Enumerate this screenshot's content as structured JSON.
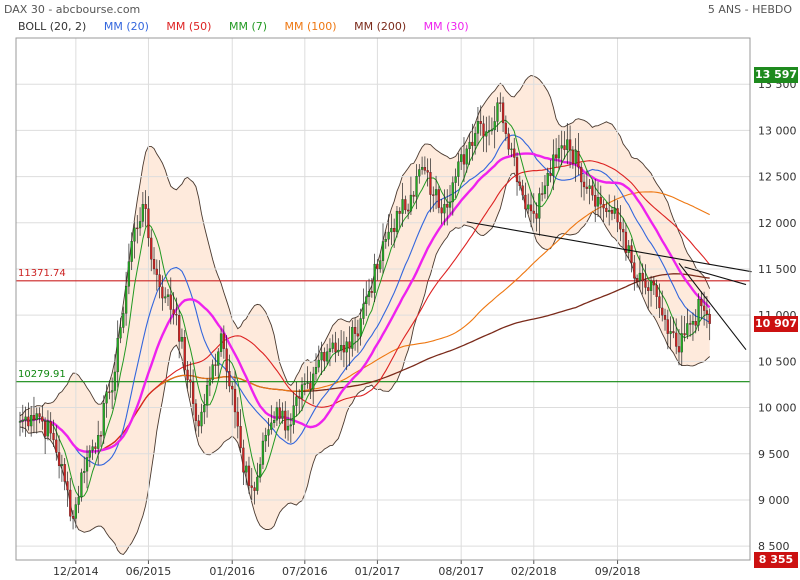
{
  "header": {
    "source": "DAX 30 - abcbourse.com",
    "period": "5 ANS - HEBDO"
  },
  "legend": [
    {
      "label": "BOLL (20, 2)",
      "color": "#333333"
    },
    {
      "label": "MM (20)",
      "color": "#3366dd"
    },
    {
      "label": "MM (50)",
      "color": "#dd2222"
    },
    {
      "label": "MM (7)",
      "color": "#229922"
    },
    {
      "label": "MM (100)",
      "color": "#ee7711"
    },
    {
      "label": "MM (200)",
      "color": "#7a2a1a"
    },
    {
      "label": "MM (30)",
      "color": "#ee22ee"
    }
  ],
  "badges": {
    "high": {
      "label": "13 597",
      "value": 13597,
      "color": "#1e8a1e"
    },
    "last": {
      "label": "10 907",
      "value": 10907,
      "color": "#cc1111"
    },
    "low": {
      "label": "8 355",
      "value": 8355,
      "color": "#cc1111"
    }
  },
  "levels": {
    "resistance": {
      "label": "11371.74",
      "value": 11371.74,
      "color": "#cc2222"
    },
    "support": {
      "label": "10279.91",
      "value": 10279.91,
      "color": "#118811"
    }
  },
  "chart_data": {
    "type": "line",
    "ylim": [
      8350,
      14000
    ],
    "y_ticks": [
      "8 500",
      "9 000",
      "9 500",
      "10 000",
      "10 500",
      "11 000",
      "11 500",
      "12 000",
      "12 500",
      "13 000",
      "13 500"
    ],
    "y_tick_values": [
      8500,
      9000,
      9500,
      10000,
      10500,
      11000,
      11500,
      12000,
      12500,
      13000,
      13500
    ],
    "x_ticks": [
      "12/2014",
      "06/2015",
      "01/2016",
      "07/2016",
      "01/2017",
      "08/2017",
      "02/2018",
      "09/2018"
    ],
    "x_tick_weeks": [
      20,
      46,
      76,
      102,
      128,
      158,
      184,
      214
    ],
    "weeks": 260,
    "close_keypoints": [
      [
        0,
        9850
      ],
      [
        6,
        9950
      ],
      [
        12,
        9650
      ],
      [
        16,
        9200
      ],
      [
        19,
        8800
      ],
      [
        23,
        9400
      ],
      [
        28,
        9700
      ],
      [
        34,
        10400
      ],
      [
        40,
        11800
      ],
      [
        44,
        12200
      ],
      [
        48,
        11500
      ],
      [
        52,
        11200
      ],
      [
        56,
        11000
      ],
      [
        60,
        10300
      ],
      [
        64,
        9800
      ],
      [
        68,
        10300
      ],
      [
        72,
        10800
      ],
      [
        76,
        10200
      ],
      [
        80,
        9300
      ],
      [
        84,
        9100
      ],
      [
        88,
        9700
      ],
      [
        92,
        10000
      ],
      [
        96,
        9800
      ],
      [
        100,
        10100
      ],
      [
        104,
        10200
      ],
      [
        108,
        10600
      ],
      [
        112,
        10700
      ],
      [
        116,
        10600
      ],
      [
        120,
        10800
      ],
      [
        124,
        11200
      ],
      [
        128,
        11500
      ],
      [
        132,
        11900
      ],
      [
        136,
        12100
      ],
      [
        140,
        12300
      ],
      [
        144,
        12600
      ],
      [
        148,
        12300
      ],
      [
        152,
        12200
      ],
      [
        156,
        12500
      ],
      [
        160,
        12800
      ],
      [
        164,
        13100
      ],
      [
        168,
        13000
      ],
      [
        172,
        13300
      ],
      [
        176,
        12800
      ],
      [
        180,
        12300
      ],
      [
        184,
        12100
      ],
      [
        188,
        12400
      ],
      [
        192,
        12700
      ],
      [
        196,
        12900
      ],
      [
        200,
        12600
      ],
      [
        204,
        12400
      ],
      [
        208,
        12200
      ],
      [
        212,
        12100
      ],
      [
        216,
        11900
      ],
      [
        220,
        11400
      ],
      [
        224,
        11300
      ],
      [
        228,
        11200
      ],
      [
        232,
        10800
      ],
      [
        236,
        10600
      ],
      [
        240,
        10900
      ],
      [
        244,
        11100
      ],
      [
        247,
        10907
      ]
    ],
    "trend_lines": [
      {
        "from": [
          160,
          12010
        ],
        "to": [
          262,
          11471
        ]
      },
      {
        "from": [
          236,
          11561
        ],
        "to": [
          260,
          10626
        ]
      },
      {
        "from": [
          238,
          11521
        ],
        "to": [
          260,
          11331
        ]
      }
    ]
  }
}
